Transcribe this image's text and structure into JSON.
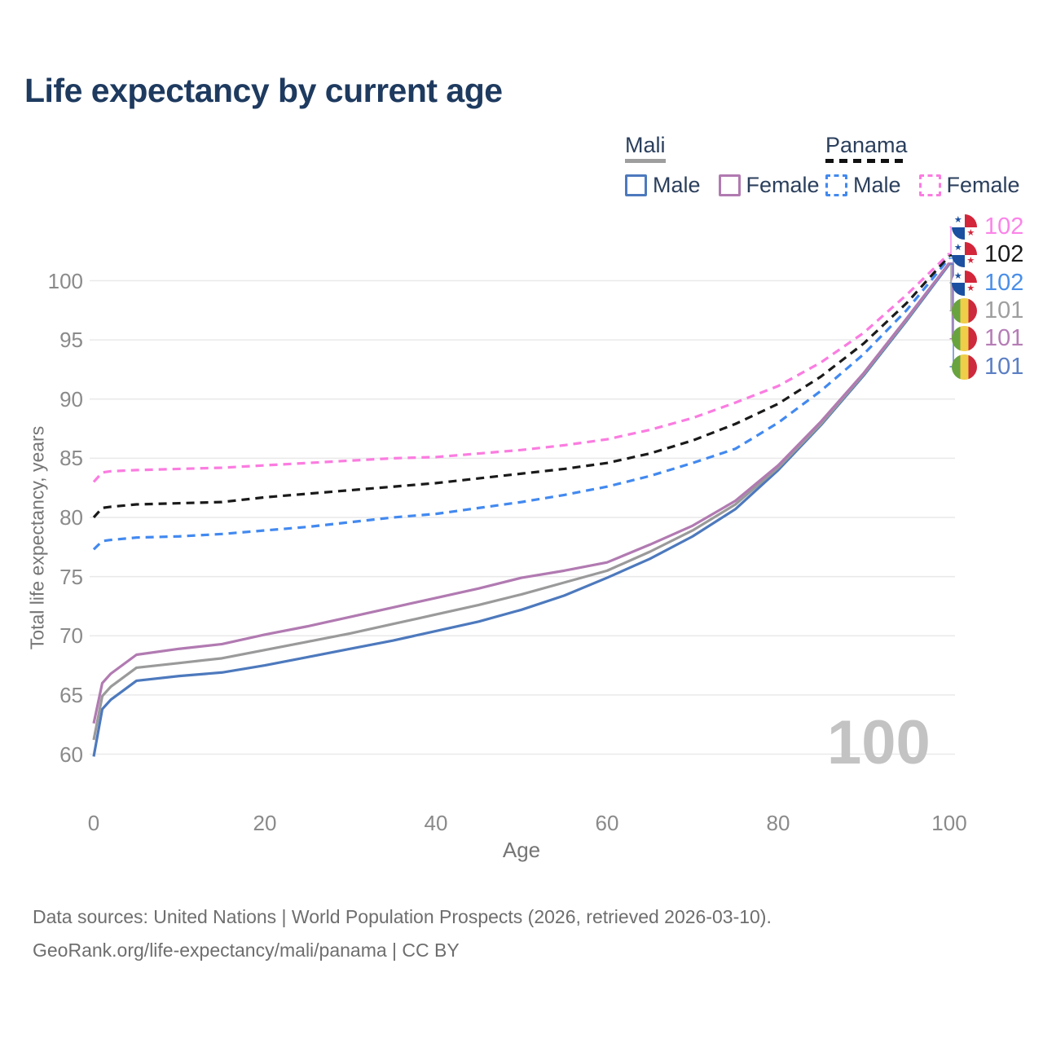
{
  "title": "Life expectancy by current age",
  "age_watermark": "100",
  "legend": {
    "groups": [
      {
        "country": "Mali",
        "line_style": "solid",
        "underline_color": "#9e9e9e",
        "items": [
          {
            "label": "Male",
            "color": "#4d79bd"
          },
          {
            "label": "Female",
            "color": "#b17ab1"
          }
        ]
      },
      {
        "country": "Panama",
        "line_style": "dashed",
        "underline_color": "#1a1a1a",
        "items": [
          {
            "label": "Male",
            "color": "#4289f0"
          },
          {
            "label": "Female",
            "color": "#fb7ce0"
          }
        ]
      }
    ]
  },
  "chart_data": {
    "type": "line",
    "title": "Life expectancy by current age",
    "xlabel": "Age",
    "ylabel": "Total life expectancy, years",
    "xlim": [
      0,
      100
    ],
    "ylim": [
      58,
      104
    ],
    "x_ticks": [
      0,
      20,
      40,
      60,
      80,
      100
    ],
    "y_ticks": [
      60,
      65,
      70,
      75,
      80,
      85,
      90,
      95,
      100
    ],
    "grid": "horizontal",
    "legend_position": "top-right",
    "ages": [
      0,
      1,
      2,
      5,
      10,
      15,
      20,
      25,
      30,
      35,
      40,
      45,
      50,
      55,
      60,
      65,
      70,
      75,
      80,
      85,
      90,
      95,
      100
    ],
    "series": [
      {
        "name": "Mali Male",
        "country": "Mali",
        "sex": "Male",
        "color": "#4d79bd",
        "dash": "solid",
        "values": [
          59.8,
          63.8,
          64.6,
          66.2,
          66.6,
          66.9,
          67.5,
          68.2,
          68.9,
          69.6,
          70.4,
          71.2,
          72.2,
          73.4,
          74.9,
          76.5,
          78.4,
          80.7,
          84.0,
          87.8,
          92.0,
          96.6,
          101.4
        ]
      },
      {
        "name": "Mali Total",
        "country": "Mali",
        "sex": "Both",
        "color": "#9a9a9a",
        "dash": "solid",
        "values": [
          61.2,
          64.9,
          65.7,
          67.3,
          67.7,
          68.1,
          68.8,
          69.5,
          70.2,
          71.0,
          71.8,
          72.6,
          73.5,
          74.5,
          75.5,
          77.1,
          78.9,
          81.1,
          84.2,
          87.9,
          92.1,
          96.7,
          101.5
        ]
      },
      {
        "name": "Mali Female",
        "country": "Mali",
        "sex": "Female",
        "color": "#b17ab1",
        "dash": "solid",
        "values": [
          62.6,
          66.0,
          66.8,
          68.4,
          68.9,
          69.3,
          70.1,
          70.8,
          71.6,
          72.4,
          73.2,
          74.0,
          74.9,
          75.5,
          76.2,
          77.7,
          79.3,
          81.4,
          84.4,
          88.1,
          92.2,
          96.8,
          101.5
        ]
      },
      {
        "name": "Panama Male",
        "country": "Panama",
        "sex": "Male",
        "color": "#4289f0",
        "dash": "dashed",
        "values": [
          77.3,
          78.0,
          78.1,
          78.3,
          78.4,
          78.6,
          78.9,
          79.2,
          79.6,
          80.0,
          80.3,
          80.8,
          81.3,
          81.9,
          82.6,
          83.5,
          84.6,
          85.8,
          88.0,
          90.7,
          93.8,
          97.5,
          101.9
        ]
      },
      {
        "name": "Panama Total",
        "country": "Panama",
        "sex": "Both",
        "color": "#1a1a1a",
        "dash": "dashed",
        "values": [
          80.0,
          80.8,
          80.9,
          81.1,
          81.2,
          81.3,
          81.7,
          82.0,
          82.3,
          82.6,
          82.9,
          83.3,
          83.7,
          84.1,
          84.6,
          85.4,
          86.5,
          87.9,
          89.6,
          91.9,
          94.7,
          98.1,
          102.1
        ]
      },
      {
        "name": "Panama Female",
        "country": "Panama",
        "sex": "Female",
        "color": "#fb7ce0",
        "dash": "dashed",
        "values": [
          83.0,
          83.8,
          83.9,
          84.0,
          84.1,
          84.2,
          84.4,
          84.6,
          84.8,
          85.0,
          85.1,
          85.4,
          85.7,
          86.1,
          86.6,
          87.4,
          88.4,
          89.7,
          91.1,
          93.1,
          95.6,
          98.8,
          102.3
        ]
      }
    ]
  },
  "right_labels": [
    {
      "flag": "panama",
      "value": "102",
      "color": "#fb84e8",
      "series_index": 5
    },
    {
      "flag": "panama",
      "value": "102",
      "color": "#1a1a1a",
      "series_index": 4
    },
    {
      "flag": "panama",
      "value": "102",
      "color": "#4a8fe8",
      "series_index": 3
    },
    {
      "flag": "mali",
      "value": "101",
      "color": "#9e9e9e",
      "series_index": 1
    },
    {
      "flag": "mali",
      "value": "101",
      "color": "#b57db5",
      "series_index": 2
    },
    {
      "flag": "mali",
      "value": "101",
      "color": "#5b7fc4",
      "series_index": 0
    }
  ],
  "flag_icons": {
    "mali": {
      "green": "#68a33f",
      "yellow": "#efce49",
      "red": "#cd2a3e"
    },
    "panama": {
      "blue": "#1b4fa0",
      "red": "#d3263b",
      "white": "#fdfdfd",
      "star": "★"
    }
  },
  "footer": {
    "line1": "Data sources: United Nations | World Population Prospects (2026, retrieved 2026-03-10).",
    "line2": "GeoRank.org/life-expectancy/mali/panama | CC BY"
  }
}
